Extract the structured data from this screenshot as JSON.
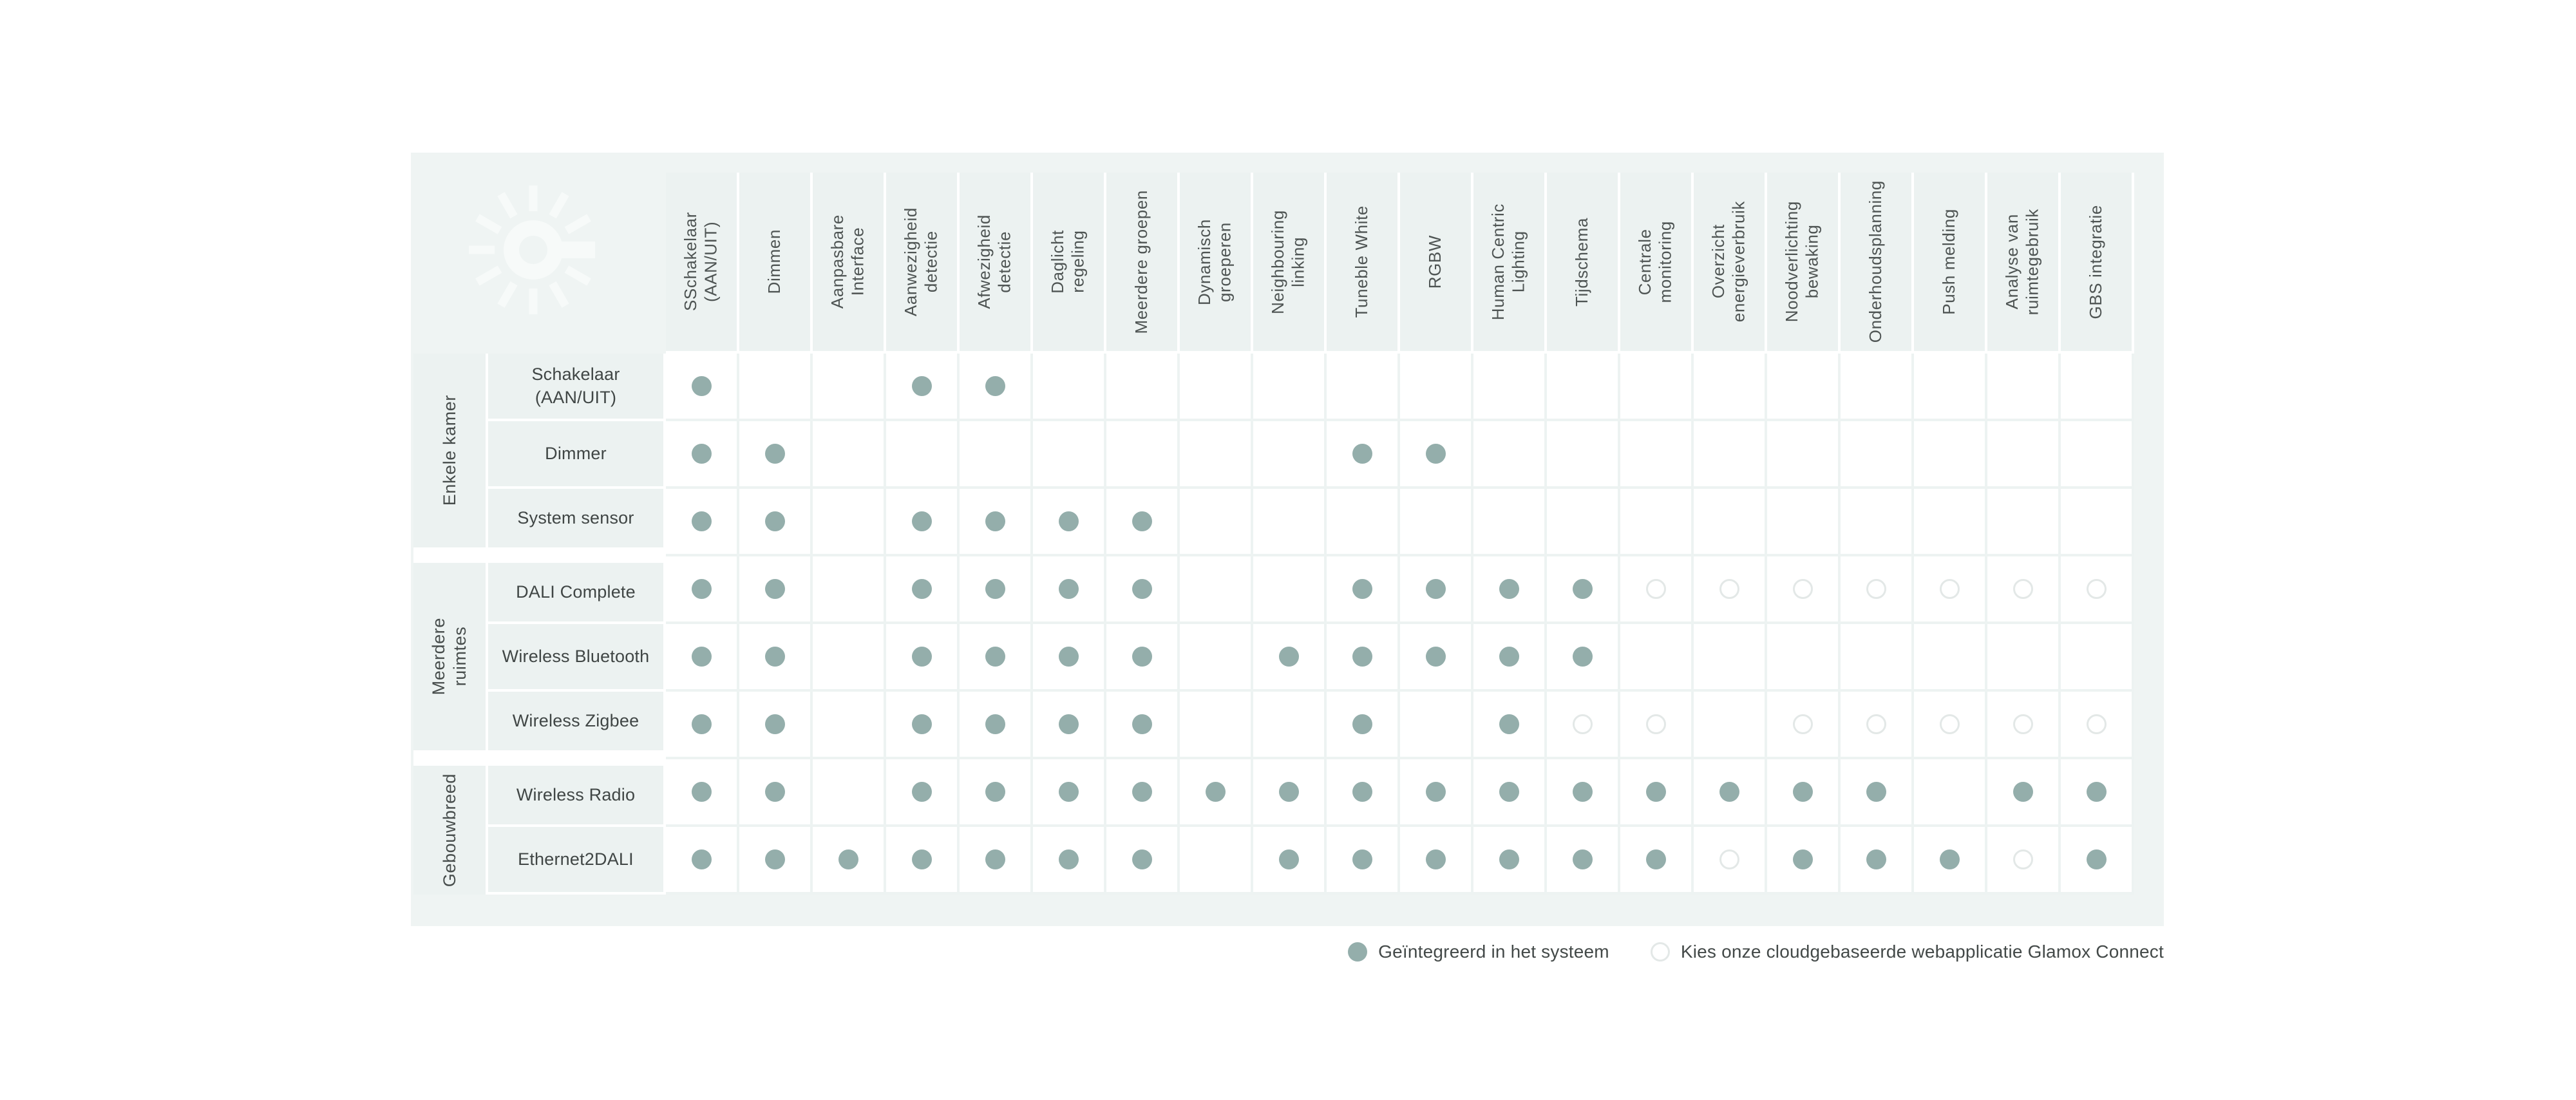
{
  "style": {
    "page_background": "#FFFFFF",
    "panel_background": "#EFF4F3",
    "cell_tint": "#ECF2F1",
    "grid_cell_background": "#FFFFFF",
    "dot_filled_color": "#94AEAB",
    "dot_outline_ring_color": "#E3E8E7",
    "label_text_color": "#4E5453"
  },
  "logo": {
    "icon": "glamox-starburst-logo"
  },
  "chart_data": {
    "type": "table",
    "columns": [
      "SSchakelaar\n(AAN/UIT)",
      "Dimmen",
      "Aanpasbare\nInterface",
      "Aanwezigheid\ndetectie",
      "Afwezigheid\ndetectie",
      "Daglicht\nregeling",
      "Meerdere groepen",
      "Dynamisch\ngroeperen",
      "Neighbouring\nlinking",
      "Tuneble White",
      "RGBW",
      "Human Centric\nLighting",
      "Tijdschema",
      "Centrale\nmonitoring",
      "Overzicht\nenergieverbruik",
      "Noodverlichting\nbewaking",
      "Onderhoudsplanning",
      "Push melding",
      "Analyse van\nruimtegebruik",
      "GBS integratie"
    ],
    "value_encoding": {
      "0": "leeg",
      "1": "outline-dot",
      "2": "filled-dot"
    },
    "row_groups": [
      {
        "label": "Enkele kamer",
        "rows": [
          {
            "label": "Schakelaar\n(AAN/UIT)",
            "values": [
              2,
              0,
              0,
              2,
              2,
              0,
              0,
              0,
              0,
              0,
              0,
              0,
              0,
              0,
              0,
              0,
              0,
              0,
              0,
              0
            ]
          },
          {
            "label": "Dimmer",
            "values": [
              2,
              2,
              0,
              0,
              0,
              0,
              0,
              0,
              0,
              2,
              2,
              0,
              0,
              0,
              0,
              0,
              0,
              0,
              0,
              0
            ]
          },
          {
            "label": "System sensor",
            "values": [
              2,
              2,
              0,
              2,
              2,
              2,
              2,
              0,
              0,
              0,
              0,
              0,
              0,
              0,
              0,
              0,
              0,
              0,
              0,
              0
            ]
          }
        ]
      },
      {
        "label": "Meerdere\nruimtes",
        "rows": [
          {
            "label": "DALI Complete",
            "values": [
              2,
              2,
              0,
              2,
              2,
              2,
              2,
              0,
              0,
              2,
              2,
              2,
              2,
              1,
              1,
              1,
              1,
              1,
              1,
              1
            ]
          },
          {
            "label": "Wireless Bluetooth",
            "values": [
              2,
              2,
              0,
              2,
              2,
              2,
              2,
              0,
              2,
              2,
              2,
              2,
              2,
              0,
              0,
              0,
              0,
              0,
              0,
              0
            ]
          },
          {
            "label": "Wireless Zigbee",
            "values": [
              2,
              2,
              0,
              2,
              2,
              2,
              2,
              0,
              0,
              2,
              0,
              2,
              1,
              1,
              0,
              1,
              1,
              1,
              1,
              1
            ]
          }
        ]
      },
      {
        "label": "Gebouwbreed",
        "rows": [
          {
            "label": "Wireless Radio",
            "values": [
              2,
              2,
              0,
              2,
              2,
              2,
              2,
              2,
              2,
              2,
              2,
              2,
              2,
              2,
              2,
              2,
              2,
              0,
              2,
              2
            ]
          },
          {
            "label": "Ethernet2DALI",
            "values": [
              2,
              2,
              2,
              2,
              2,
              2,
              2,
              0,
              2,
              2,
              2,
              2,
              2,
              2,
              1,
              2,
              2,
              2,
              1,
              2
            ]
          }
        ]
      }
    ],
    "legend": {
      "filled": "Geïntegreerd in het systeem",
      "outline": "Kies onze cloudgebaseerde webapplicatie Glamox Connect"
    },
    "legend_position": "bottom-right",
    "grid": "on"
  }
}
